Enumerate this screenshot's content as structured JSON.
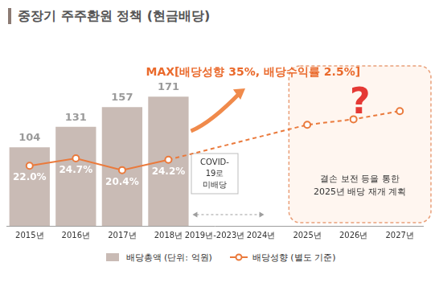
{
  "chart_data": {
    "type": "bar",
    "title": "중장기 주주환원 정책 (현금배당)",
    "categories": [
      "2015년",
      "2016년",
      "2017년",
      "2018년",
      "2019년-2023년",
      "2024년",
      "2025년",
      "2026년",
      "2027년"
    ],
    "series": [
      {
        "name": "배당총액 (단위: 억원)",
        "type": "bar",
        "color": "#c9bbb5",
        "values": [
          104,
          131,
          157,
          171,
          null,
          null,
          null,
          null,
          null
        ],
        "data_labels": true
      },
      {
        "name": "배당성향 (별도 기준)",
        "type": "line",
        "axis": "y2",
        "color": "#ea7a3c",
        "marker": "circle",
        "values": [
          22.0,
          24.7,
          20.4,
          24.2,
          null,
          null,
          37,
          39,
          42
        ],
        "data_labels": true,
        "value_labels": [
          "22.0%",
          "24.7%",
          "20.4%",
          "24.2%",
          null,
          null,
          null,
          null,
          null
        ]
      }
    ],
    "ylim": [
      0,
      235
    ],
    "y2lim": [
      0,
      65
    ],
    "grid": false,
    "tick_labels": "x",
    "legend": "bottom",
    "annotations": {
      "max": "MAX[배당성향 35%, 배당수익률 2.5%]",
      "covid": [
        "COVID-",
        "19로",
        "미배당"
      ],
      "question": "?",
      "plan": [
        "결손 보전 등을 통한",
        "2025년 배당 재개 계획"
      ]
    }
  }
}
